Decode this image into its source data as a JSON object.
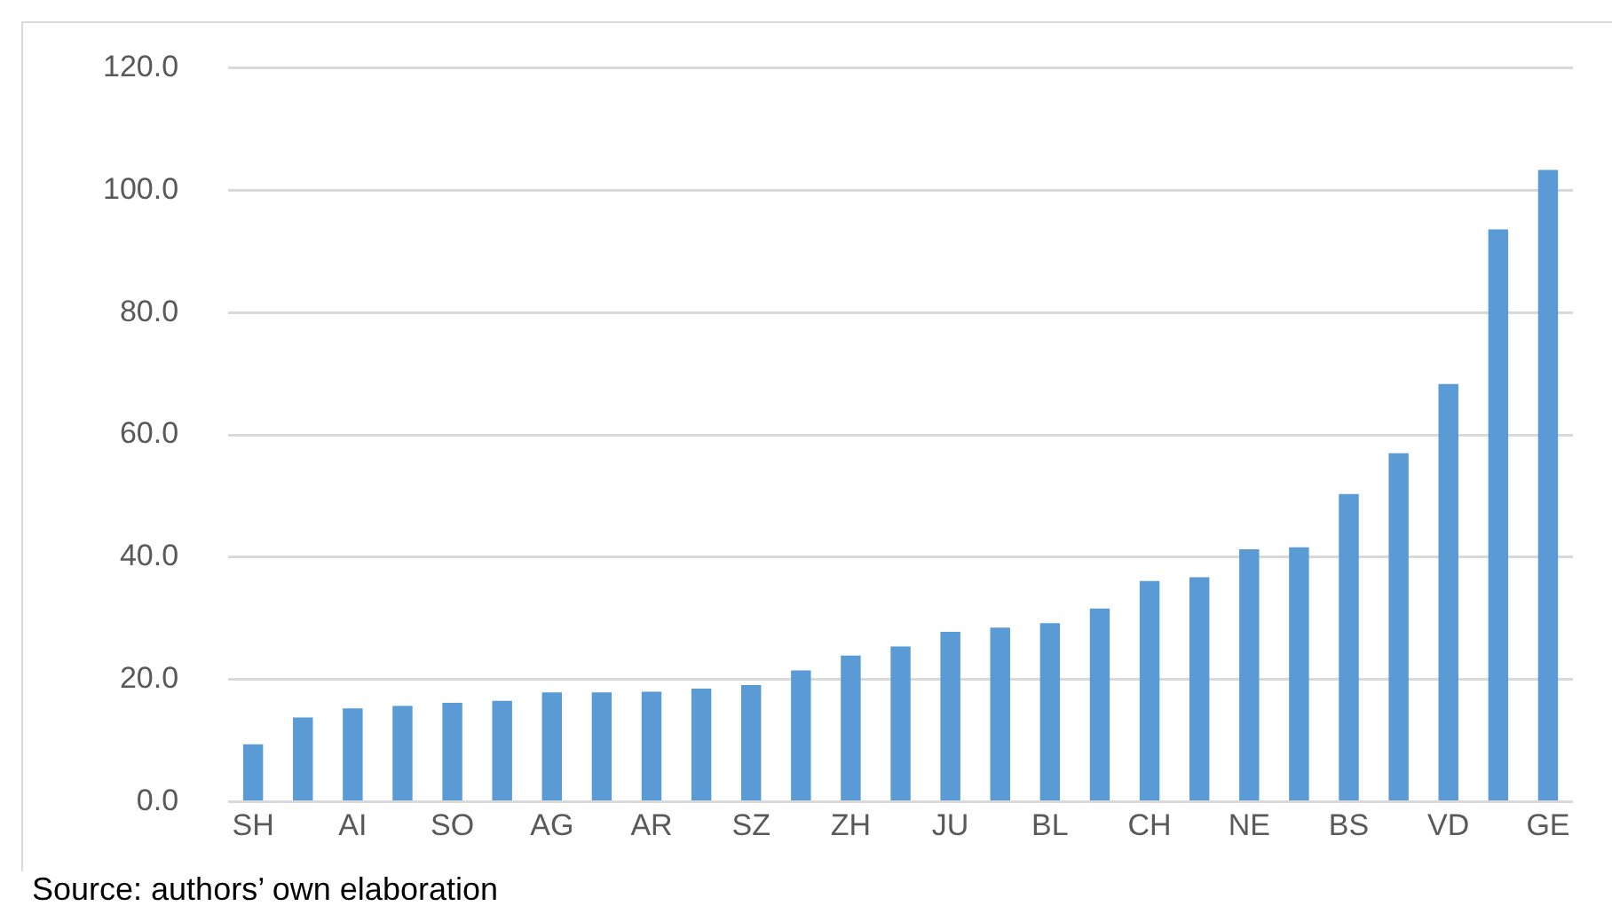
{
  "chart_data": {
    "type": "bar",
    "categories": [
      "SH",
      null,
      "AI",
      null,
      "SO",
      null,
      "AG",
      null,
      "AR",
      null,
      "SZ",
      null,
      "ZH",
      null,
      "JU",
      null,
      "BL",
      null,
      "CH",
      null,
      "NE",
      null,
      "BS",
      null,
      "VD",
      null,
      "GE"
    ],
    "values": [
      9.4,
      13.8,
      15.3,
      15.7,
      16.2,
      16.5,
      17.9,
      17.9,
      18.0,
      18.5,
      19.1,
      21.5,
      23.9,
      25.4,
      27.8,
      28.5,
      29.2,
      31.6,
      36.1,
      36.7,
      41.3,
      41.6,
      50.3,
      57.0,
      68.3,
      93.6,
      103.3
    ],
    "color": "#5b9bd5",
    "ylim": [
      0,
      120
    ],
    "yticks": [
      {
        "value": 0,
        "label": "0.0"
      },
      {
        "value": 20,
        "label": "20.0"
      },
      {
        "value": 40,
        "label": "40.0"
      },
      {
        "value": 60,
        "label": "60.0"
      },
      {
        "value": 80,
        "label": "80.0"
      },
      {
        "value": 100,
        "label": "100.0"
      },
      {
        "value": 120,
        "label": "120.0"
      }
    ],
    "grid": "y",
    "legend": false,
    "annotations": [
      "Source: authors’ own elaboration"
    ]
  }
}
